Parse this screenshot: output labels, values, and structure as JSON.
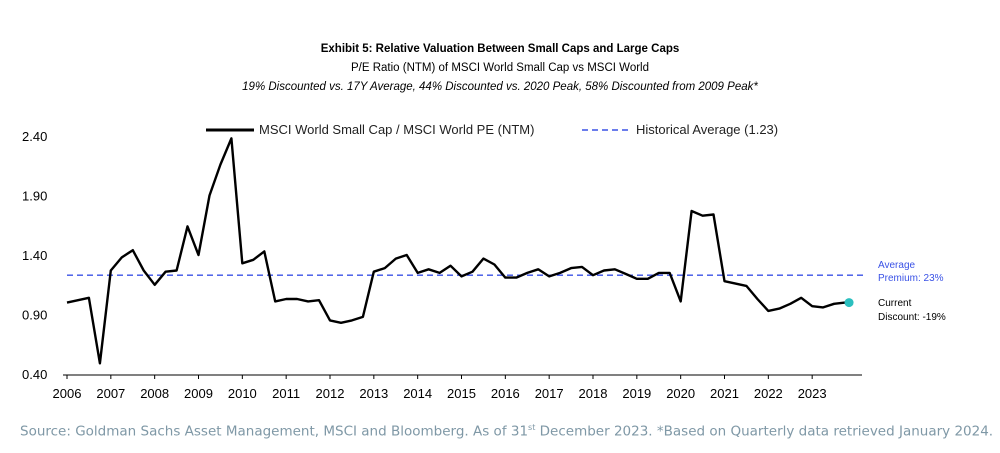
{
  "chart_data": {
    "type": "line",
    "title": "Exhibit 5: Relative Valuation Between Small Caps and Large Caps",
    "subtitle": "P/E Ratio (NTM) of MSCI World Small Cap vs MSCI World",
    "note": "19% Discounted vs. 17Y Average, 44% Discounted vs. 2020 Peak, 58% Discounted from 2009 Peak*",
    "xlabel": "",
    "ylabel": "",
    "xlim": [
      2006,
      2024
    ],
    "ylim": [
      0.4,
      2.4
    ],
    "x_ticks": [
      "2006",
      "2007",
      "2008",
      "2009",
      "2010",
      "2011",
      "2012",
      "2013",
      "2014",
      "2015",
      "2016",
      "2017",
      "2018",
      "2019",
      "2020",
      "2021",
      "2022",
      "2023"
    ],
    "y_ticks": [
      "0.40",
      "0.90",
      "1.40",
      "1.90",
      "2.40"
    ],
    "grid": false,
    "legend_position": "top",
    "series": [
      {
        "name": "MSCI World Small Cap / MSCI World PE (NTM)",
        "color": "#000000",
        "x": [
          2006.0,
          2006.25,
          2006.5,
          2006.75,
          2007.0,
          2007.25,
          2007.5,
          2007.75,
          2008.0,
          2008.25,
          2008.5,
          2008.75,
          2009.0,
          2009.25,
          2009.5,
          2009.75,
          2010.0,
          2010.25,
          2010.5,
          2010.75,
          2011.0,
          2011.25,
          2011.5,
          2011.75,
          2012.0,
          2012.25,
          2012.5,
          2012.75,
          2013.0,
          2013.25,
          2013.5,
          2013.75,
          2014.0,
          2014.25,
          2014.5,
          2014.75,
          2015.0,
          2015.25,
          2015.5,
          2015.75,
          2016.0,
          2016.25,
          2016.5,
          2016.75,
          2017.0,
          2017.25,
          2017.5,
          2017.75,
          2018.0,
          2018.25,
          2018.5,
          2018.75,
          2019.0,
          2019.25,
          2019.5,
          2019.75,
          2020.0,
          2020.25,
          2020.5,
          2020.75,
          2021.0,
          2021.25,
          2021.5,
          2021.75,
          2022.0,
          2022.25,
          2022.5,
          2022.75,
          2023.0,
          2023.25,
          2023.5,
          2023.75
        ],
        "values": [
          1.0,
          1.02,
          1.04,
          0.49,
          1.27,
          1.38,
          1.44,
          1.27,
          1.15,
          1.26,
          1.27,
          1.64,
          1.4,
          1.9,
          2.16,
          2.38,
          1.33,
          1.36,
          1.43,
          1.01,
          1.03,
          1.03,
          1.01,
          1.02,
          0.85,
          0.83,
          0.85,
          0.88,
          1.26,
          1.29,
          1.37,
          1.4,
          1.25,
          1.28,
          1.25,
          1.31,
          1.22,
          1.26,
          1.37,
          1.32,
          1.21,
          1.21,
          1.25,
          1.28,
          1.22,
          1.25,
          1.29,
          1.3,
          1.23,
          1.27,
          1.28,
          1.24,
          1.2,
          1.2,
          1.25,
          1.25,
          1.01,
          1.77,
          1.73,
          1.74,
          1.18,
          1.16,
          1.14,
          1.03,
          0.93,
          0.95,
          0.99,
          1.04,
          0.97,
          0.96,
          0.99,
          1.0
        ]
      },
      {
        "name": "Historical Average (1.23)",
        "color": "#3a52e6",
        "style": "dashed",
        "value": 1.23
      }
    ],
    "annotations": {
      "average_line1": "Average",
      "average_line2": "Premium: 23%",
      "current_line1": "Current",
      "current_line2": "Discount: -19%"
    },
    "marker_color": "#2bbfbf"
  },
  "source_pre": "Source: Goldman Sachs Asset Management, MSCI and Bloomberg. As of 31",
  "source_sup": "st",
  "source_post": " December 2023. *Based on Quarterly data retrieved January 2024."
}
